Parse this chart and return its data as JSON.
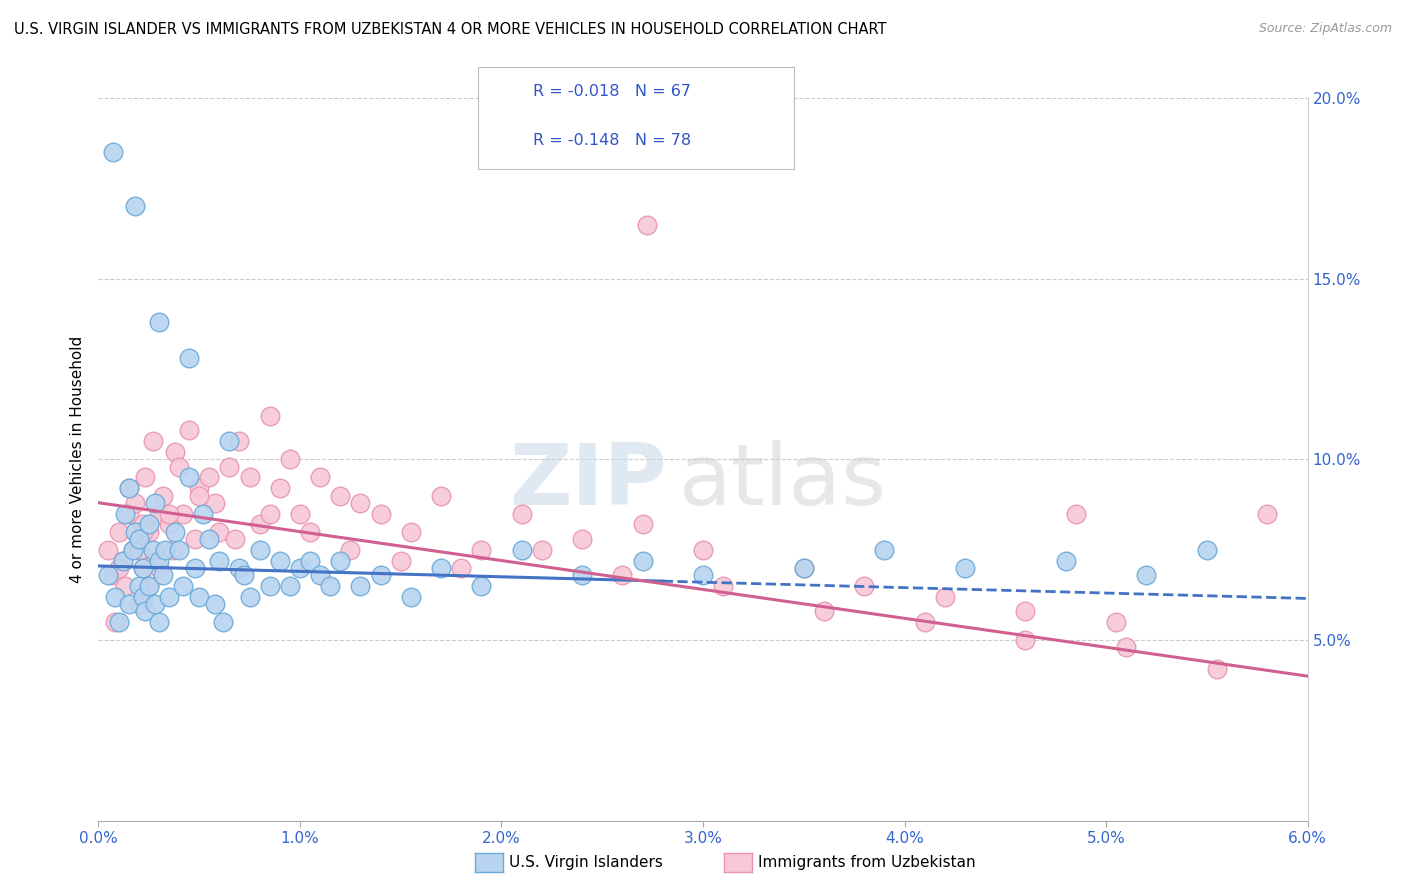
{
  "title": "U.S. VIRGIN ISLANDER VS IMMIGRANTS FROM UZBEKISTAN 4 OR MORE VEHICLES IN HOUSEHOLD CORRELATION CHART",
  "source": "Source: ZipAtlas.com",
  "ylabel": "4 or more Vehicles in Household",
  "xlim": [
    0.0,
    6.0
  ],
  "ylim": [
    0.0,
    20.0
  ],
  "series1_label": "U.S. Virgin Islanders",
  "series1_fill_color": "#b8d4f0",
  "series1_edge_color": "#6baad8",
  "series1_line_color": "#4472c4",
  "series1_R": "-0.018",
  "series1_N": "67",
  "series2_label": "Immigrants from Uzbekistan",
  "series2_fill_color": "#f8c8d8",
  "series2_edge_color": "#e896b0",
  "series2_line_color": "#d06090",
  "series2_R": "-0.148",
  "series2_N": "78",
  "legend_text_color": "#3355cc",
  "watermark": "ZIPatlas",
  "yticks_right": [
    5.0,
    10.0,
    15.0,
    20.0
  ],
  "blue_scatter_x": [
    0.05,
    0.08,
    0.1,
    0.12,
    0.13,
    0.15,
    0.15,
    0.17,
    0.18,
    0.2,
    0.2,
    0.22,
    0.22,
    0.23,
    0.25,
    0.25,
    0.27,
    0.28,
    0.28,
    0.3,
    0.3,
    0.32,
    0.33,
    0.35,
    0.38,
    0.4,
    0.42,
    0.45,
    0.48,
    0.5,
    0.52,
    0.55,
    0.58,
    0.6,
    0.62,
    0.65,
    0.7,
    0.72,
    0.75,
    0.8,
    0.85,
    0.9,
    0.95,
    1.0,
    1.05,
    1.1,
    1.15,
    1.2,
    1.3,
    1.4,
    1.55,
    1.7,
    1.9,
    2.1,
    2.4,
    2.7,
    3.0,
    3.5,
    3.9,
    4.3,
    4.8,
    5.2,
    5.5,
    0.07,
    0.18,
    0.3,
    0.45
  ],
  "blue_scatter_y": [
    6.8,
    6.2,
    5.5,
    7.2,
    8.5,
    6.0,
    9.2,
    7.5,
    8.0,
    6.5,
    7.8,
    6.2,
    7.0,
    5.8,
    8.2,
    6.5,
    7.5,
    6.0,
    8.8,
    7.2,
    5.5,
    6.8,
    7.5,
    6.2,
    8.0,
    7.5,
    6.5,
    9.5,
    7.0,
    6.2,
    8.5,
    7.8,
    6.0,
    7.2,
    5.5,
    10.5,
    7.0,
    6.8,
    6.2,
    7.5,
    6.5,
    7.2,
    6.5,
    7.0,
    7.2,
    6.8,
    6.5,
    7.2,
    6.5,
    6.8,
    6.2,
    7.0,
    6.5,
    7.5,
    6.8,
    7.2,
    6.8,
    7.0,
    7.5,
    7.0,
    7.2,
    6.8,
    7.5,
    18.5,
    17.0,
    13.8,
    12.8
  ],
  "pink_scatter_x": [
    0.05,
    0.07,
    0.08,
    0.1,
    0.12,
    0.13,
    0.15,
    0.15,
    0.17,
    0.18,
    0.2,
    0.2,
    0.22,
    0.22,
    0.23,
    0.25,
    0.25,
    0.27,
    0.28,
    0.3,
    0.3,
    0.32,
    0.35,
    0.37,
    0.38,
    0.4,
    0.42,
    0.45,
    0.48,
    0.5,
    0.55,
    0.58,
    0.6,
    0.65,
    0.7,
    0.75,
    0.8,
    0.85,
    0.9,
    0.95,
    1.0,
    1.1,
    1.2,
    1.3,
    1.4,
    1.55,
    1.7,
    1.9,
    2.1,
    2.4,
    2.7,
    3.0,
    3.5,
    3.8,
    4.2,
    4.6,
    5.05,
    0.1,
    0.22,
    0.35,
    0.5,
    0.68,
    0.85,
    1.05,
    1.25,
    1.5,
    1.8,
    2.2,
    2.6,
    3.1,
    3.6,
    4.1,
    4.6,
    5.1,
    5.55,
    5.8,
    2.72,
    4.85
  ],
  "pink_scatter_y": [
    7.5,
    6.8,
    5.5,
    8.0,
    7.2,
    6.5,
    8.5,
    9.2,
    7.5,
    8.8,
    6.0,
    7.5,
    8.2,
    7.0,
    9.5,
    8.0,
    6.5,
    10.5,
    7.2,
    8.5,
    7.0,
    9.0,
    8.2,
    7.5,
    10.2,
    9.8,
    8.5,
    10.8,
    7.8,
    9.2,
    9.5,
    8.8,
    8.0,
    9.8,
    10.5,
    9.5,
    8.2,
    11.2,
    9.2,
    10.0,
    8.5,
    9.5,
    9.0,
    8.8,
    8.5,
    8.0,
    9.0,
    7.5,
    8.5,
    7.8,
    8.2,
    7.5,
    7.0,
    6.5,
    6.2,
    5.8,
    5.5,
    7.0,
    8.0,
    8.5,
    9.0,
    7.8,
    8.5,
    8.0,
    7.5,
    7.2,
    7.0,
    7.5,
    6.8,
    6.5,
    5.8,
    5.5,
    5.0,
    4.8,
    4.2,
    8.5,
    16.5,
    8.5
  ],
  "blue_trend_x0": 0.0,
  "blue_trend_y0": 7.05,
  "blue_trend_x1": 6.0,
  "blue_trend_y1": 6.15,
  "blue_solid_end": 2.8,
  "pink_trend_x0": 0.0,
  "pink_trend_y0": 8.8,
  "pink_trend_x1": 6.0,
  "pink_trend_y1": 4.0
}
